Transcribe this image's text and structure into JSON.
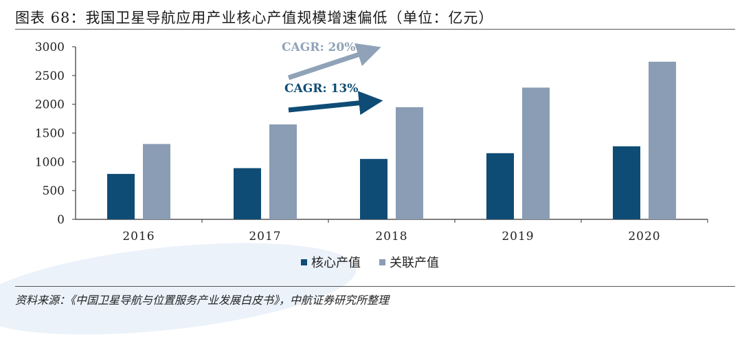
{
  "title": "图表 68：我国卫星导航应用产业核心产值规模增速偏低（单位：亿元）",
  "source": "资料来源：《中国卫星导航与位置服务产业发展白皮书》，中航证券研究所整理",
  "colors": {
    "core": "#0f4c75",
    "related": "#8a9db4",
    "arrow_light": "#8fa2b8",
    "arrow_dark": "#0f4c75"
  },
  "chart_data": {
    "type": "bar",
    "categories": [
      "2016",
      "2017",
      "2018",
      "2019",
      "2020"
    ],
    "series": [
      {
        "name": "核心产值",
        "values": [
          790,
          890,
          1050,
          1150,
          1270
        ]
      },
      {
        "name": "关联产值",
        "values": [
          1310,
          1650,
          1950,
          2290,
          2740
        ]
      }
    ],
    "yticks": [
      "0",
      "500",
      "1000",
      "1500",
      "2000",
      "2500",
      "3000"
    ],
    "ylim": [
      0,
      3000
    ],
    "annotations": [
      "CAGR: 20%",
      "CAGR: 13%"
    ],
    "legend_position": "bottom",
    "grid": false
  }
}
